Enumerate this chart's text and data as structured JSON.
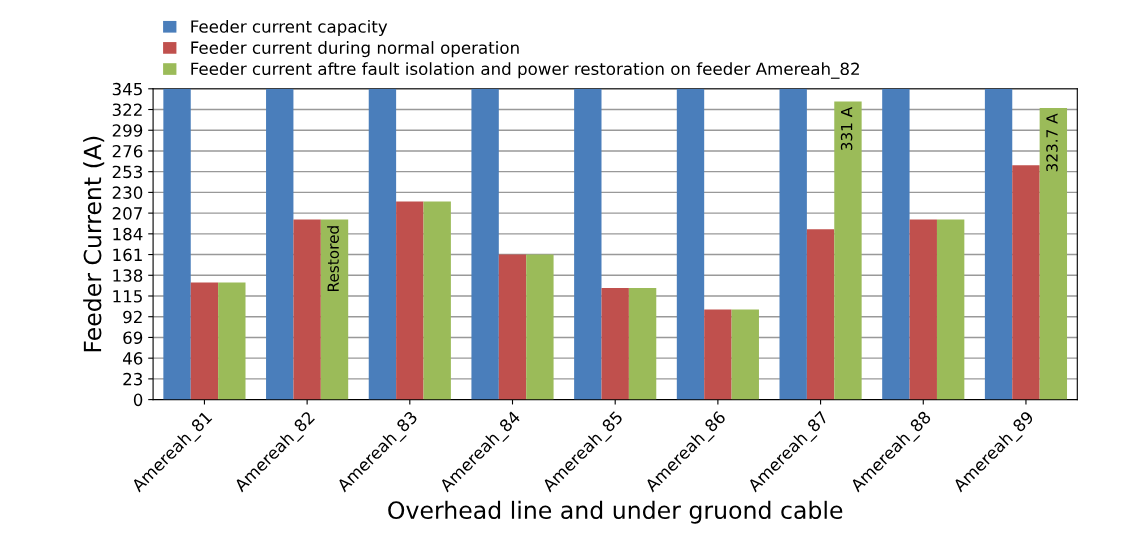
{
  "chart_data": {
    "type": "bar",
    "categories": [
      "Amereah_81",
      "Amereah_82",
      "Amereah_83",
      "Amereah_84",
      "Amereah_85",
      "Amereah_86",
      "Amereah_87",
      "Amereah_88",
      "Amereah_89"
    ],
    "series": [
      {
        "name": "Feeder current capacity",
        "color": "#4a7ebb",
        "values": [
          345,
          345,
          345,
          345,
          345,
          345,
          345,
          345,
          345
        ]
      },
      {
        "name": "Feeder current during normal operation",
        "color": "#c0504d",
        "values": [
          130,
          200,
          220,
          161,
          124,
          100,
          189,
          200,
          260
        ]
      },
      {
        "name": "Feeder current aftre fault isolation and power restoration on feeder Amereah_82",
        "color": "#9bbb59",
        "values": [
          130,
          200,
          220,
          161,
          124,
          100,
          331,
          200,
          323.7
        ],
        "value_labels": [
          null,
          "Restored",
          null,
          null,
          null,
          null,
          "331 A",
          null,
          "323.7 A"
        ]
      }
    ],
    "xlabel": "Overhead line and under gruond cable",
    "ylabel": "Feeder Current (A)",
    "ylim": [
      0,
      345
    ],
    "yticks": [
      0,
      23,
      46,
      69,
      92,
      115,
      138,
      161,
      184,
      207,
      230,
      253,
      276,
      299,
      322,
      345
    ],
    "grid": "y",
    "legend": "top left"
  }
}
